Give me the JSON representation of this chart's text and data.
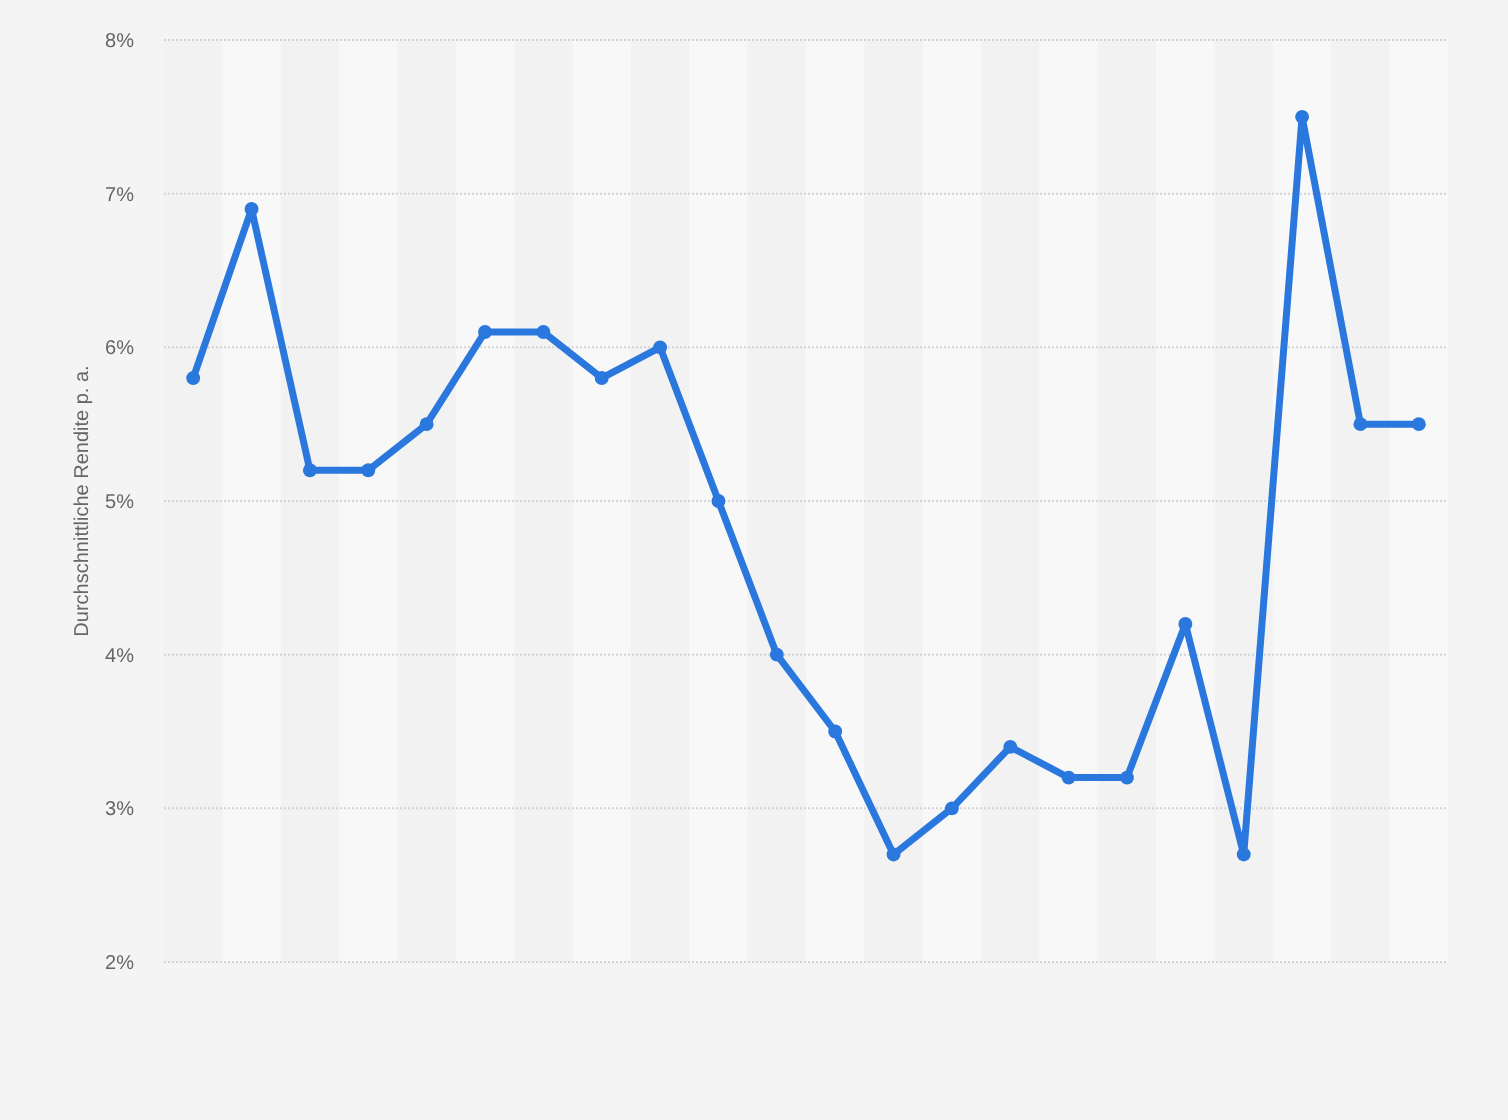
{
  "chart_data": {
    "type": "line",
    "ylabel": "Durchschnittliche Rendite p. a.",
    "categories": [
      null,
      null,
      null,
      null,
      null,
      null,
      null,
      null,
      null,
      null,
      null,
      null,
      null,
      null,
      null,
      null,
      null,
      null,
      null,
      null,
      null,
      null
    ],
    "series": [
      {
        "color": "#2a78de",
        "values": [
          5.8,
          6.9,
          5.2,
          5.2,
          5.5,
          6.1,
          6.1,
          5.8,
          6.0,
          5.0,
          4.0,
          3.5,
          2.7,
          3.0,
          3.4,
          3.2,
          3.2,
          4.2,
          2.7,
          7.5,
          5.5,
          5.5
        ]
      }
    ],
    "ylim": [
      2,
      8
    ],
    "yticks": [
      {
        "value": 2,
        "label": "2%"
      },
      {
        "value": 3,
        "label": "3%"
      },
      {
        "value": 4,
        "label": "4%"
      },
      {
        "value": 5,
        "label": "5%"
      },
      {
        "value": 6,
        "label": "6%"
      },
      {
        "value": 7,
        "label": "7%"
      },
      {
        "value": 8,
        "label": "8%"
      }
    ],
    "grid": "y",
    "marker": "circle",
    "line_style": "solid"
  }
}
